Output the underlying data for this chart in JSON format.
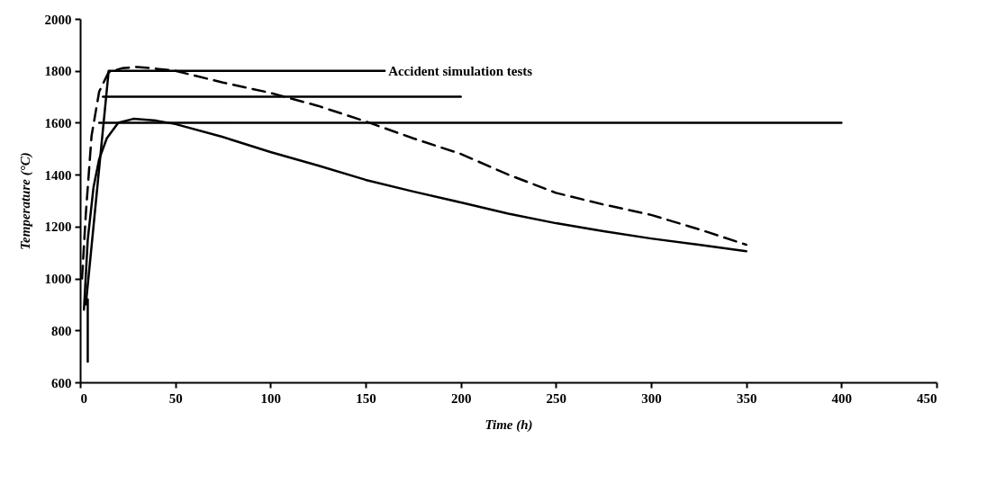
{
  "chart_data": {
    "type": "line",
    "xlabel": "Time (h)",
    "ylabel": "Temperature (°C)",
    "xlim": [
      0,
      450
    ],
    "xticks": [
      0,
      50,
      100,
      150,
      200,
      250,
      300,
      350,
      400,
      450
    ],
    "ylim": [
      600,
      2000
    ],
    "yticks": [
      600,
      800,
      1000,
      1200,
      1400,
      1600,
      1800,
      2000
    ],
    "grid": false,
    "marker": "none",
    "series": [
      {
        "color": "#000000",
        "line_style": "solid",
        "x": [
          2,
          4,
          7,
          10,
          14,
          20,
          28,
          40,
          50,
          75,
          100,
          125,
          150,
          175,
          200,
          225,
          250,
          275,
          300,
          325,
          350
        ],
        "values": [
          880,
          1150,
          1350,
          1460,
          1540,
          1600,
          1615,
          1608,
          1595,
          1545,
          1487,
          1435,
          1380,
          1335,
          1293,
          1250,
          1213,
          1182,
          1154,
          1130,
          1105
        ]
      },
      {
        "color": "#000000",
        "line_style": "dashed",
        "x": [
          1,
          3,
          6,
          10,
          15,
          22,
          30,
          40,
          50,
          75,
          100,
          125,
          150,
          175,
          200,
          225,
          250,
          275,
          300,
          325,
          350
        ],
        "values": [
          1000,
          1250,
          1550,
          1720,
          1795,
          1810,
          1815,
          1808,
          1800,
          1755,
          1715,
          1665,
          1605,
          1540,
          1480,
          1400,
          1330,
          1285,
          1245,
          1190,
          1130
        ]
      },
      {
        "color": "#000000",
        "line_style": "solid",
        "x": [
          3,
          15,
          160
        ],
        "values": [
          900,
          1800,
          1800
        ]
      },
      {
        "color": "#000000",
        "line_style": "solid",
        "x": [
          12,
          200
        ],
        "values": [
          1700,
          1700
        ]
      },
      {
        "color": "#000000",
        "line_style": "solid",
        "x": [
          10,
          400
        ],
        "values": [
          1600,
          1600
        ]
      },
      {
        "color": "#000000",
        "line_style": "solid",
        "x": [
          4,
          4
        ],
        "values": [
          680,
          920
        ]
      }
    ],
    "annotations": [
      {
        "text": "Accident simulation tests",
        "x": 160,
        "y": 1800
      }
    ]
  }
}
